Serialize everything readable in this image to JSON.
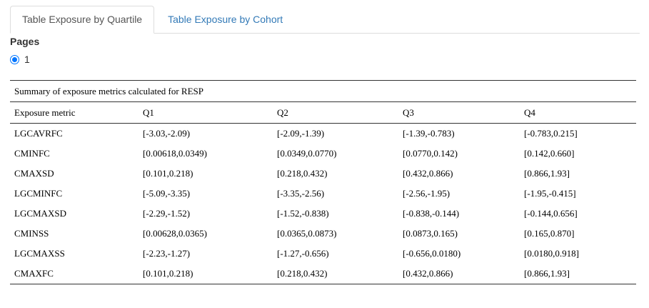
{
  "tabs": [
    {
      "label": "Table Exposure by Quartile",
      "active": true
    },
    {
      "label": "Table Exposure by Cohort",
      "active": false
    }
  ],
  "pages": {
    "label": "Pages",
    "options": [
      {
        "label": "1",
        "selected": true
      }
    ]
  },
  "table": {
    "caption": "Summary of exposure metrics calculated for RESP",
    "headers": [
      "Exposure metric",
      "Q1",
      "Q2",
      "Q3",
      "Q4"
    ],
    "rows": [
      [
        "LGCAVRFC",
        "[-3.03,-2.09)",
        "[-2.09,-1.39)",
        "[-1.39,-0.783)",
        "[-0.783,0.215]"
      ],
      [
        "CMINFC",
        "[0.00618,0.0349)",
        "[0.0349,0.0770)",
        "[0.0770,0.142)",
        "[0.142,0.660]"
      ],
      [
        "CMAXSD",
        "[0.101,0.218)",
        "[0.218,0.432)",
        "[0.432,0.866)",
        "[0.866,1.93]"
      ],
      [
        "LGCMINFC",
        "[-5.09,-3.35)",
        "[-3.35,-2.56)",
        "[-2.56,-1.95)",
        "[-1.95,-0.415]"
      ],
      [
        "LGCMAXSD",
        "[-2.29,-1.52)",
        "[-1.52,-0.838)",
        "[-0.838,-0.144)",
        "[-0.144,0.656]"
      ],
      [
        "CMINSS",
        "[0.00628,0.0365)",
        "[0.0365,0.0873)",
        "[0.0873,0.165)",
        "[0.165,0.870]"
      ],
      [
        "LGCMAXSS",
        "[-2.23,-1.27)",
        "[-1.27,-0.656)",
        "[-0.656,0.0180)",
        "[0.0180,0.918]"
      ],
      [
        "CMAXFC",
        "[0.101,0.218)",
        "[0.218,0.432)",
        "[0.432,0.866)",
        "[0.866,1.93]"
      ]
    ]
  }
}
